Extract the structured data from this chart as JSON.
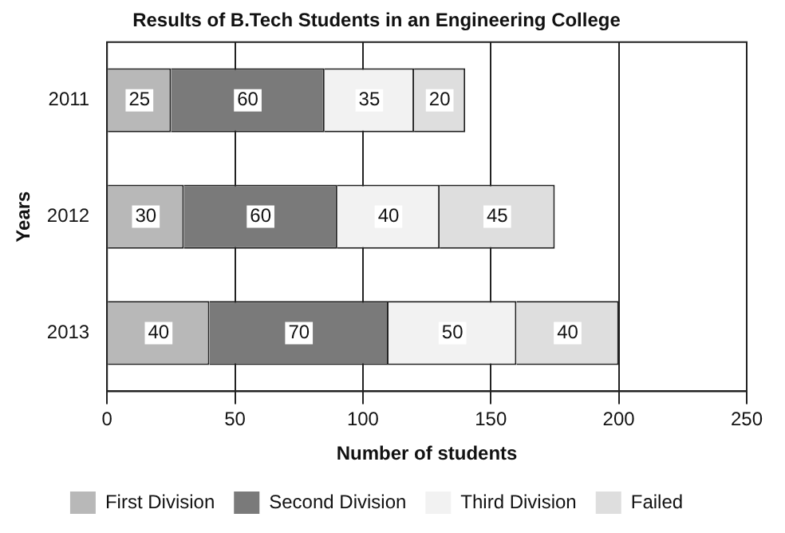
{
  "chart_data": {
    "type": "bar",
    "orientation": "horizontal",
    "stacked": true,
    "title": "Results of B.Tech Students in an Engineering College",
    "xlabel": "Number of students",
    "ylabel": "Years",
    "categories": [
      "2011",
      "2012",
      "2013"
    ],
    "series": [
      {
        "name": "First Division",
        "color": "#b8b8b8",
        "values": [
          25,
          30,
          40
        ]
      },
      {
        "name": "Second Division",
        "color": "#7a7a7a",
        "values": [
          60,
          60,
          70
        ]
      },
      {
        "name": "Third Division",
        "color": "#f2f2f2",
        "values": [
          35,
          40,
          50
        ]
      },
      {
        "name": "Failed",
        "color": "#dedede",
        "values": [
          20,
          45,
          40
        ]
      }
    ],
    "xlim": [
      0,
      250
    ],
    "xticks": [
      0,
      50,
      100,
      150,
      200,
      250
    ],
    "grid": "x",
    "legend": "bottom",
    "data_labels": true
  }
}
